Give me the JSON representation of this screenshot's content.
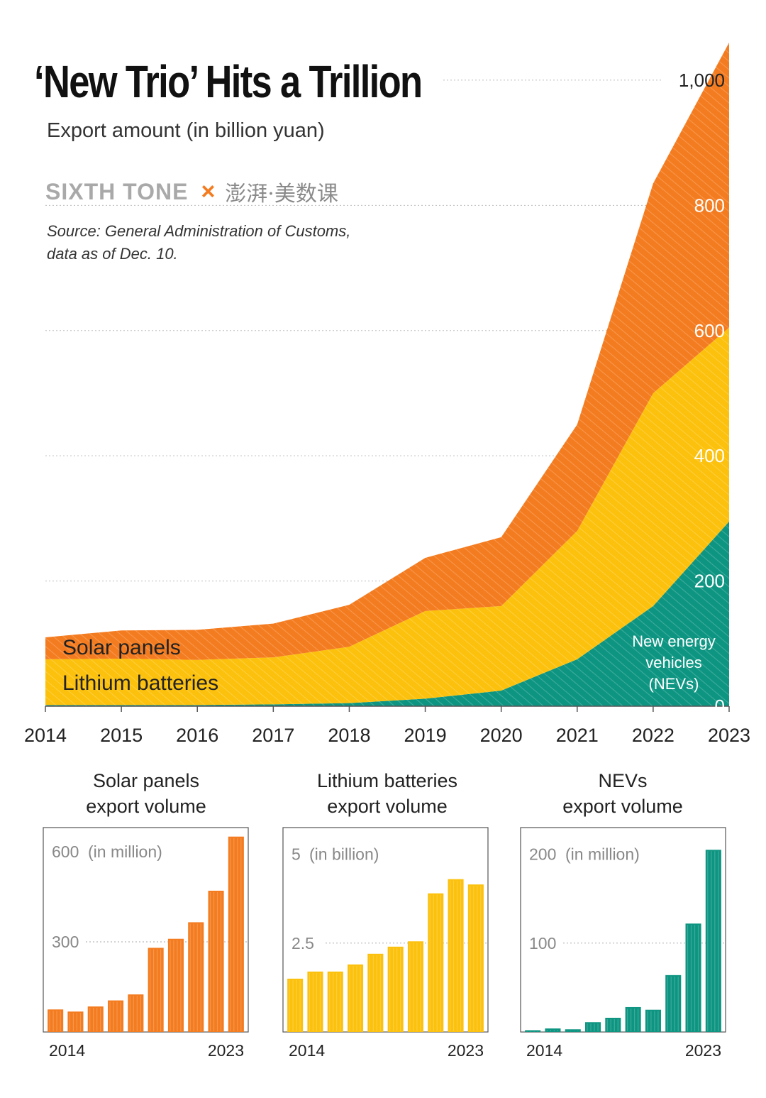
{
  "header": {
    "title": "‘New Trio’ Hits a Trillion",
    "subtitle": "Export amount (in billion yuan)",
    "brand_left": "SIXTH TONE",
    "brand_sep": "×",
    "brand_right": "澎湃·美数课",
    "source_line1": "Source: General Administration of Customs,",
    "source_line2": "data as of Dec. 10."
  },
  "chart_data": [
    {
      "type": "area",
      "stacked": true,
      "title": "‘New Trio’ Hits a Trillion",
      "subtitle": "Export amount (in billion yuan)",
      "x": [
        2014,
        2015,
        2016,
        2017,
        2018,
        2019,
        2020,
        2021,
        2022,
        2023
      ],
      "x_tick_labels": [
        "2014",
        "2015",
        "2016",
        "2017",
        "2018",
        "2019",
        "2020",
        "2021",
        "2022",
        "2023"
      ],
      "y_tick_labels": [
        "0",
        "200",
        "400",
        "600",
        "800",
        "1,000"
      ],
      "y_ticks": [
        0,
        200,
        400,
        600,
        800,
        1000
      ],
      "ylim": [
        0,
        1060
      ],
      "grid": true,
      "series": [
        {
          "name": "New energy vehicles (NEVs)",
          "label_lines": [
            "New energy",
            "vehicles",
            "(NEVs)"
          ],
          "color": "#0e9582",
          "values": [
            2,
            2,
            2,
            3,
            5,
            12,
            25,
            75,
            160,
            295
          ]
        },
        {
          "name": "Lithium batteries",
          "color": "#fcc10d",
          "values": [
            73,
            74,
            72,
            75,
            90,
            140,
            135,
            205,
            340,
            310
          ]
        },
        {
          "name": "Solar panels",
          "color": "#f47c20",
          "values": [
            35,
            45,
            48,
            54,
            67,
            85,
            110,
            170,
            335,
            455
          ]
        }
      ]
    },
    {
      "type": "bar",
      "title": "Solar panels export volume",
      "title_lines": [
        "Solar panels",
        "export volume"
      ],
      "unit": "(in million)",
      "color": "#f47c20",
      "y_ticks": [
        300,
        600
      ],
      "y_tick_labels": [
        "300",
        "600"
      ],
      "ylim": [
        0,
        680
      ],
      "x_labels": [
        "2014",
        "2023"
      ],
      "categories": [
        2014,
        2015,
        2016,
        2017,
        2018,
        2019,
        2020,
        2021,
        2022,
        2023
      ],
      "values": [
        75,
        68,
        85,
        105,
        125,
        280,
        310,
        365,
        470,
        650
      ]
    },
    {
      "type": "bar",
      "title": "Lithium batteries export volume",
      "title_lines": [
        "Lithium batteries",
        "export volume"
      ],
      "unit": "(in billion)",
      "color": "#fcc10d",
      "y_ticks": [
        2.5,
        5
      ],
      "y_tick_labels": [
        "2.5",
        "5"
      ],
      "ylim": [
        0,
        5.75
      ],
      "x_labels": [
        "2014",
        "2023"
      ],
      "categories": [
        2014,
        2015,
        2016,
        2017,
        2018,
        2019,
        2020,
        2021,
        2022,
        2023
      ],
      "values": [
        1.5,
        1.7,
        1.7,
        1.9,
        2.2,
        2.4,
        2.55,
        3.9,
        4.3,
        4.15
      ]
    },
    {
      "type": "bar",
      "title": "NEVs export volume",
      "title_lines": [
        "NEVs",
        "export volume"
      ],
      "unit": "(in million)",
      "color": "#0e9582",
      "y_ticks": [
        100,
        200
      ],
      "y_tick_labels": [
        "100",
        "200"
      ],
      "ylim": [
        0,
        230
      ],
      "x_labels": [
        "2014",
        "2023"
      ],
      "categories": [
        2014,
        2015,
        2016,
        2017,
        2018,
        2019,
        2020,
        2021,
        2022,
        2023
      ],
      "values": [
        2,
        4,
        3,
        11,
        16,
        28,
        25,
        64,
        122,
        205
      ]
    }
  ]
}
